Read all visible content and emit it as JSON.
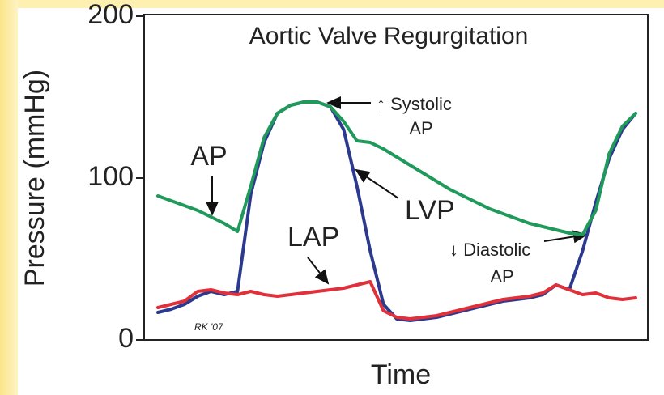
{
  "chart_data": {
    "type": "line",
    "title": "Aortic Valve Regurgitation",
    "y_label": "Pressure (mmHg)",
    "x_label": "Time",
    "categories": [
      null,
      null,
      null,
      null,
      null,
      null,
      null,
      null,
      null,
      null,
      null,
      null,
      null,
      null,
      null,
      null,
      null,
      null,
      null,
      null,
      null,
      null,
      null,
      null,
      null,
      null,
      null,
      null,
      null,
      null,
      null,
      null,
      null,
      null,
      null,
      null,
      null
    ],
    "series": [
      {
        "name": "LVP",
        "color": "#2b3a8f",
        "values": [
          17,
          19,
          22,
          27,
          30,
          28,
          30,
          90,
          122,
          140,
          145,
          147,
          147,
          144,
          130,
          95,
          55,
          22,
          13,
          12,
          13,
          14,
          16,
          18,
          20,
          22,
          24,
          25,
          26,
          28,
          34,
          31,
          55,
          85,
          112,
          130,
          140
        ]
      },
      {
        "name": "LAP",
        "color": "#e0303a",
        "values": [
          20,
          22,
          24,
          30,
          31,
          29,
          28,
          30,
          28,
          27,
          28,
          29,
          30,
          31,
          32,
          34,
          36,
          18,
          14,
          13,
          14,
          15,
          17,
          19,
          21,
          23,
          25,
          26,
          27,
          29,
          34,
          31,
          28,
          29,
          26,
          25,
          26
        ]
      },
      {
        "name": "AP",
        "color": "#1f9a5a",
        "values": [
          89,
          86,
          83,
          80,
          76,
          72,
          67,
          95,
          125,
          140,
          145,
          147,
          147,
          144,
          135,
          123,
          122,
          118,
          113,
          108,
          103,
          98,
          93,
          89,
          85,
          81,
          78,
          75,
          72,
          70,
          68,
          66,
          65,
          80,
          115,
          132,
          140
        ]
      }
    ],
    "annotations": [
      "↑ Systolic",
      "AP",
      "↓ Diastolic",
      "AP",
      "RK '07"
    ],
    "ylim": [
      0,
      200
    ],
    "yticks": [
      0,
      100,
      200
    ]
  }
}
